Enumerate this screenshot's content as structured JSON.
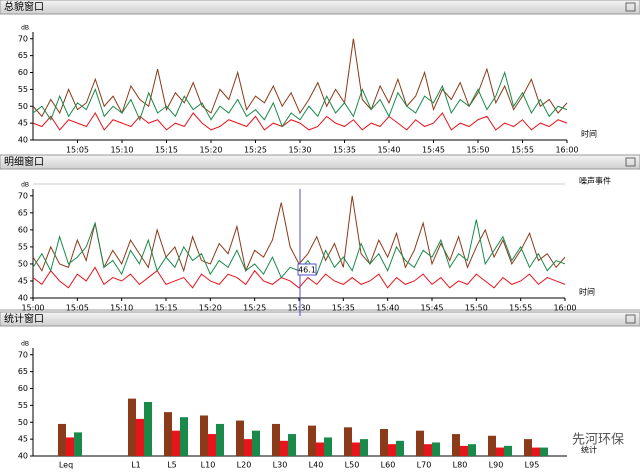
{
  "windows": [
    {
      "title": "总貌窗口"
    },
    {
      "title": "明细窗口"
    },
    {
      "title": "统计窗口"
    }
  ],
  "watermark": "先河环保",
  "chart_data": [
    {
      "type": "line",
      "y_unit": "dB",
      "x_label": "时间",
      "x": [
        900,
        901,
        902,
        903,
        904,
        905,
        906,
        907,
        908,
        909,
        910,
        911,
        912,
        913,
        914,
        915,
        916,
        917,
        918,
        919,
        920,
        921,
        922,
        923,
        924,
        925,
        926,
        927,
        928,
        929,
        930,
        931,
        932,
        933,
        934,
        935,
        936,
        937,
        938,
        939,
        940,
        941,
        942,
        943,
        944,
        945,
        946,
        947,
        948,
        949,
        950,
        951,
        952,
        953,
        954,
        955,
        956,
        957,
        958,
        959,
        960
      ],
      "xlim": [
        900,
        960
      ],
      "xticks": [
        {
          "value": 905,
          "label": "15:05"
        },
        {
          "value": 910,
          "label": "15:10"
        },
        {
          "value": 915,
          "label": "15:15"
        },
        {
          "value": 920,
          "label": "15:20"
        },
        {
          "value": 925,
          "label": "15:25"
        },
        {
          "value": 930,
          "label": "15:30"
        },
        {
          "value": 935,
          "label": "15:35"
        },
        {
          "value": 940,
          "label": "15:40"
        },
        {
          "value": 945,
          "label": "15:45"
        },
        {
          "value": 950,
          "label": "15:50"
        },
        {
          "value": 955,
          "label": "15:55"
        },
        {
          "value": 960,
          "label": "16:00"
        }
      ],
      "ylim": [
        40,
        72
      ],
      "yticks": [
        40,
        45,
        50,
        55,
        60,
        65,
        70
      ],
      "series": [
        {
          "color": "#8b3a1a",
          "values": [
            50,
            47,
            52,
            48,
            55,
            49,
            51,
            58,
            50,
            53,
            48,
            56,
            52,
            50,
            61,
            49,
            54,
            51,
            57,
            50,
            48,
            55,
            52,
            60,
            49,
            53,
            51,
            56,
            50,
            54,
            48,
            52,
            57,
            50,
            55,
            51,
            70,
            52,
            49,
            56,
            51,
            58,
            50,
            53,
            60,
            49,
            55,
            52,
            57,
            50,
            54,
            61,
            51,
            56,
            49,
            53,
            58,
            50,
            52,
            48,
            51
          ]
        },
        {
          "color": "#e8141c",
          "values": [
            45,
            44,
            47,
            43,
            46,
            45,
            44,
            48,
            43,
            46,
            45,
            44,
            47,
            45,
            46,
            43,
            45,
            44,
            48,
            45,
            43,
            44,
            46,
            45,
            44,
            47,
            43,
            45,
            44,
            46,
            45,
            43,
            44,
            47,
            45,
            44,
            46,
            43,
            45,
            44,
            47,
            45,
            43,
            46,
            44,
            45,
            48,
            43,
            45,
            44,
            46,
            47,
            43,
            45,
            44,
            46,
            43,
            45,
            44,
            46,
            45
          ]
        },
        {
          "color": "#1a8a4a",
          "values": [
            48,
            50,
            46,
            53,
            47,
            51,
            49,
            55,
            47,
            50,
            48,
            52,
            46,
            54,
            48,
            50,
            47,
            53,
            49,
            51,
            46,
            50,
            48,
            52,
            47,
            49,
            46,
            51,
            44,
            48,
            46,
            50,
            47,
            53,
            48,
            51,
            47,
            55,
            49,
            52,
            47,
            54,
            50,
            48,
            53,
            51,
            56,
            48,
            52,
            50,
            55,
            49,
            53,
            60,
            50,
            54,
            48,
            52,
            47,
            50,
            49
          ]
        }
      ]
    },
    {
      "type": "line",
      "y_unit": "dB",
      "x_label": "时间",
      "event_label": "噪声事件",
      "marker_label": "46.1",
      "x": [
        900,
        901,
        902,
        903,
        904,
        905,
        906,
        907,
        908,
        909,
        910,
        911,
        912,
        913,
        914,
        915,
        916,
        917,
        918,
        919,
        920,
        921,
        922,
        923,
        924,
        925,
        926,
        927,
        928,
        929,
        930,
        931,
        932,
        933,
        934,
        935,
        936,
        937,
        938,
        939,
        940,
        941,
        942,
        943,
        944,
        945,
        946,
        947,
        948,
        949,
        950,
        951,
        952,
        953,
        954,
        955,
        956,
        957,
        958,
        959,
        960
      ],
      "xlim": [
        900,
        960
      ],
      "xticks": [
        {
          "value": 900,
          "label": "15:00"
        },
        {
          "value": 905,
          "label": "15:05"
        },
        {
          "value": 910,
          "label": "15:10"
        },
        {
          "value": 915,
          "label": "15:15"
        },
        {
          "value": 920,
          "label": "15:20"
        },
        {
          "value": 925,
          "label": "15:25"
        },
        {
          "value": 930,
          "label": "15:30"
        },
        {
          "value": 935,
          "label": "15:35"
        },
        {
          "value": 940,
          "label": "15:40"
        },
        {
          "value": 945,
          "label": "15:45"
        },
        {
          "value": 950,
          "label": "15:50"
        },
        {
          "value": 955,
          "label": "15:55"
        },
        {
          "value": 960,
          "label": "16:00"
        }
      ],
      "ylim": [
        40,
        72
      ],
      "yticks": [
        40,
        45,
        50,
        55,
        60,
        65,
        70
      ],
      "series": [
        {
          "color": "#8b3a1a",
          "values": [
            52,
            48,
            55,
            50,
            49,
            57,
            51,
            62,
            49,
            54,
            50,
            57,
            53,
            49,
            60,
            52,
            55,
            48,
            58,
            51,
            50,
            56,
            53,
            61,
            48,
            54,
            52,
            57,
            68,
            55,
            50,
            53,
            58,
            51,
            56,
            49,
            70,
            53,
            50,
            57,
            52,
            59,
            49,
            54,
            62,
            50,
            56,
            51,
            58,
            49,
            55,
            60,
            52,
            57,
            50,
            54,
            59,
            51,
            53,
            49,
            52
          ]
        },
        {
          "color": "#e8141c",
          "values": [
            46,
            44,
            48,
            45,
            43,
            47,
            45,
            49,
            44,
            46,
            45,
            47,
            44,
            46,
            48,
            44,
            45,
            46,
            43,
            47,
            45,
            44,
            47,
            46,
            44,
            48,
            45,
            44,
            46,
            45,
            43,
            46,
            44,
            47,
            45,
            44,
            46,
            44,
            45,
            47,
            43,
            46,
            44,
            45,
            47,
            44,
            46,
            43,
            45,
            44,
            47,
            45,
            43,
            46,
            44,
            45,
            47,
            44,
            46,
            45,
            44
          ]
        },
        {
          "color": "#1a8a4a",
          "values": [
            49,
            53,
            48,
            58,
            50,
            52,
            55,
            62,
            49,
            51,
            47,
            54,
            50,
            57,
            48,
            52,
            49,
            55,
            51,
            53,
            47,
            51,
            49,
            54,
            48,
            50,
            47,
            52,
            46,
            49,
            48,
            51,
            47,
            54,
            49,
            52,
            48,
            56,
            50,
            53,
            48,
            55,
            51,
            49,
            54,
            52,
            57,
            49,
            53,
            51,
            63,
            50,
            54,
            58,
            51,
            55,
            49,
            53,
            48,
            51,
            50
          ]
        }
      ]
    },
    {
      "type": "bar",
      "y_unit": "dB",
      "x_label": "统计",
      "categories": [
        "Leq",
        "L1",
        "L5",
        "L10",
        "L20",
        "L30",
        "L40",
        "L50",
        "L60",
        "L70",
        "L80",
        "L90",
        "L95"
      ],
      "ylim": [
        40,
        72
      ],
      "yticks": [
        40,
        45,
        50,
        55,
        60,
        65,
        70
      ],
      "series": [
        {
          "color": "#8b3a1a",
          "values": [
            49.5,
            57,
            53,
            52,
            50.5,
            49.5,
            49,
            48.5,
            48,
            47.5,
            46.5,
            46,
            45
          ]
        },
        {
          "color": "#e8141c",
          "values": [
            45.5,
            51,
            47.5,
            46.5,
            45,
            44.5,
            44,
            44,
            43.5,
            43.5,
            43,
            42.5,
            42.5
          ]
        },
        {
          "color": "#1a8a4a",
          "values": [
            47,
            56,
            51.5,
            49.5,
            47.5,
            46.5,
            45.5,
            45,
            44.5,
            44,
            43.5,
            43,
            42.5
          ]
        }
      ]
    }
  ]
}
